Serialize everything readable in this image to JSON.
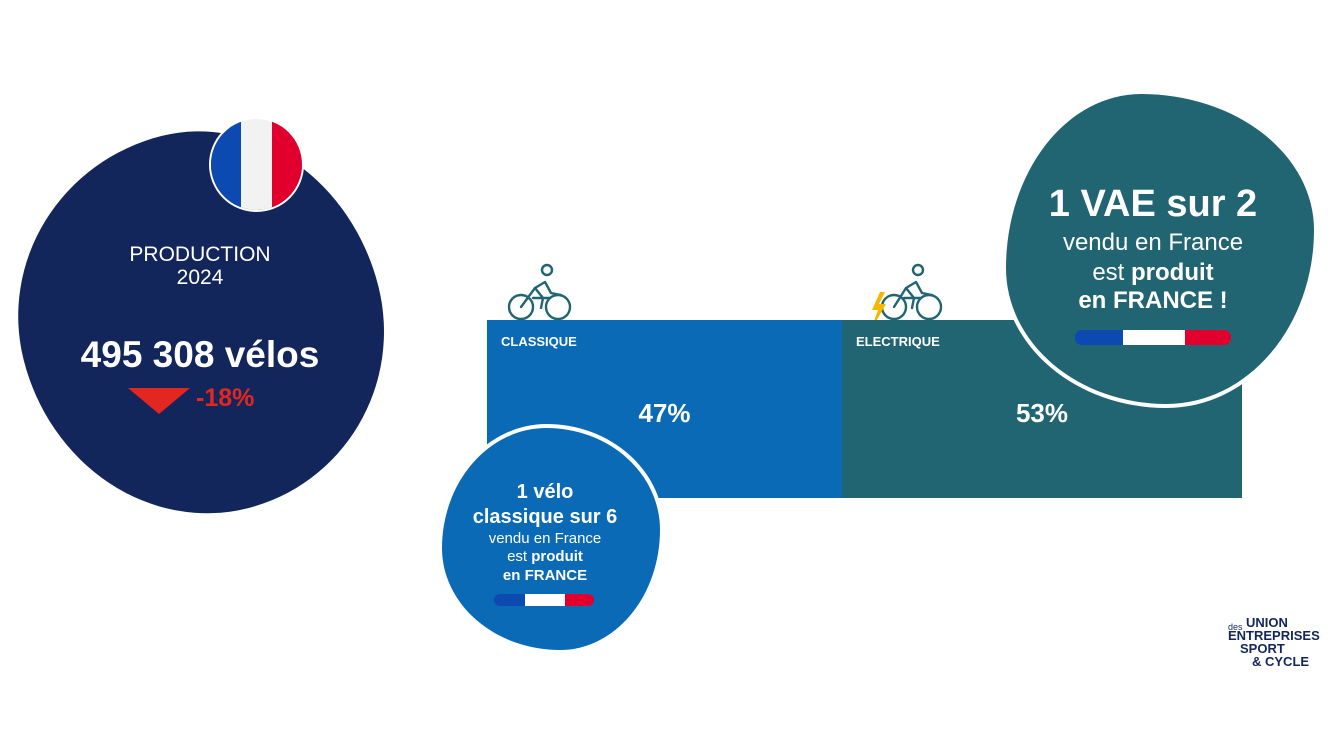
{
  "production": {
    "label_line1": "PRODUCTION",
    "label_line2": "2024",
    "value": "495 308 vélos",
    "change": "-18%"
  },
  "colors": {
    "navy": "#13265c",
    "classique_blue": "#0a6ab6",
    "electrique_teal": "#216472",
    "negative_red": "#e3261f",
    "flag_blue": "#0c49b0",
    "flag_white": "#ffffff",
    "flag_red": "#e1002d",
    "lightning": "#f5b800"
  },
  "icons": {
    "classique": "cyclist-icon",
    "electrique": "electric-cyclist-icon",
    "flag": "french-flag-icon"
  },
  "chart_data": {
    "type": "bar",
    "orientation": "horizontal-stacked",
    "title": "",
    "categories": [
      "CLASSIQUE",
      "ELECTRIQUE"
    ],
    "values": [
      47,
      53
    ],
    "value_labels": [
      "47%",
      "53%"
    ],
    "unit": "%",
    "xlim": [
      0,
      100
    ],
    "grid": false,
    "legend": "none"
  },
  "vae_callout": {
    "title": "1 VAE sur 2",
    "line1": "vendu en France",
    "line2_prefix": "est ",
    "line2_bold": "produit",
    "line3": "en FRANCE !"
  },
  "classique_callout": {
    "title_line1": "1 vélo",
    "title_line2": "classique sur 6",
    "line1": "vendu en France",
    "line2_prefix": "est ",
    "line2_bold": "produit",
    "line3": "en FRANCE"
  },
  "logo": {
    "des": "des",
    "line1": "UNION",
    "line2": "ENTREPRISES",
    "line3": "SPORT",
    "line4": "& CYCLE"
  }
}
